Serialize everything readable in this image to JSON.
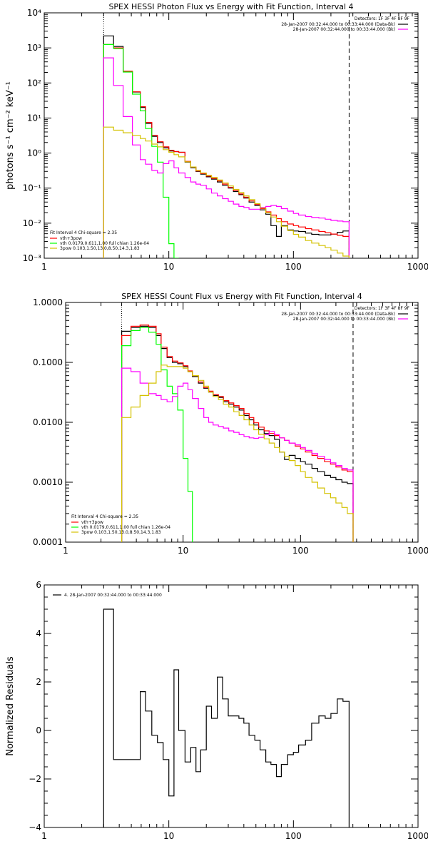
{
  "chart_data": [
    {
      "type": "line",
      "title": "SPEX HESSI Photon Flux vs Energy with Fit Function, Interval 4",
      "xlabel": "",
      "ylabel": "photons s⁻¹ cm⁻² keV⁻¹",
      "xscale": "log",
      "yscale": "log",
      "xlim": [
        1,
        1000
      ],
      "ylim": [
        0.001,
        10000
      ],
      "x_ticks": [
        1,
        10,
        100,
        1000
      ],
      "x_tick_labels": [
        "1",
        "10",
        "100",
        "1000"
      ],
      "y_ticks": [
        0.001,
        0.01,
        0.1,
        1,
        10,
        100,
        1000,
        10000
      ],
      "y_tick_labels": [
        "10⁻³",
        "10⁻²",
        "10⁻¹",
        "10⁰",
        "10¹",
        "10²",
        "10³",
        "10⁴"
      ],
      "vlines": [
        {
          "x": 3.0,
          "style": "dotted"
        },
        {
          "x": 280,
          "style": "dashed"
        }
      ],
      "legend_topright": {
        "header": "Detectors: 1F 3F 4F 8F 9F",
        "entries": [
          "28-Jan-2007 00:32:44.000 to 00:33:44.000 (Data-Bk)",
          "28-Jan-2007 00:32:44.000 to 00:33:44.000 (Bk)"
        ]
      },
      "legend_bottomleft": {
        "header": "Fit Interval  4   Chi-square = 2.35",
        "entries": [
          "vth+3pow",
          "vth 0.0179,0.611,1.00  full chian 1.26e-04",
          "3pow 0.103,1.50,13.0,8.50,14.3,1.83"
        ]
      },
      "series": [
        {
          "color": "#000000",
          "x": [
            3,
            3.6,
            4.3,
            5.1,
            5.9,
            6.5,
            7.3,
            8.1,
            9.0,
            10,
            11,
            12,
            13.5,
            15,
            16.5,
            18,
            20,
            22,
            24.5,
            27,
            30,
            33,
            36.5,
            40,
            44,
            49,
            54,
            60,
            66,
            73,
            80,
            90,
            100,
            110,
            125,
            140,
            160,
            180,
            200,
            225,
            250,
            280
          ],
          "y": [
            2200,
            1100,
            210,
            55,
            20,
            7,
            3.0,
            2.0,
            1.4,
            1.15,
            1.1,
            1.05,
            0.55,
            0.38,
            0.3,
            0.25,
            0.21,
            0.18,
            0.15,
            0.12,
            0.1,
            0.08,
            0.065,
            0.052,
            0.04,
            0.032,
            0.024,
            0.018,
            0.0085,
            0.0042,
            0.0085,
            0.0064,
            0.006,
            0.0058,
            0.0052,
            0.0048,
            0.0046,
            0.0046,
            0.0049,
            0.0055,
            0.006,
            0.0065
          ]
        },
        {
          "color": "#ff0000",
          "x": [
            3,
            3.6,
            4.3,
            5.1,
            5.9,
            6.5,
            7.3,
            8.1,
            9.0,
            10,
            11,
            12,
            13.5,
            15,
            16.5,
            18,
            20,
            22,
            24.5,
            27,
            30,
            33,
            36.5,
            40,
            44,
            49,
            54,
            60,
            66,
            73,
            80,
            90,
            100,
            110,
            125,
            140,
            160,
            180,
            200,
            225,
            250,
            280
          ],
          "y": [
            1250,
            1000,
            215,
            56,
            21,
            7.5,
            3.2,
            2.1,
            1.5,
            1.2,
            1.1,
            1.05,
            0.58,
            0.4,
            0.31,
            0.26,
            0.22,
            0.19,
            0.16,
            0.13,
            0.105,
            0.085,
            0.068,
            0.055,
            0.043,
            0.034,
            0.026,
            0.021,
            0.017,
            0.0135,
            0.011,
            0.0095,
            0.0085,
            0.0078,
            0.007,
            0.0064,
            0.0058,
            0.0053,
            0.0049,
            0.0045,
            0.0042,
            0.0039
          ]
        },
        {
          "color": "#00ff00",
          "x": [
            3,
            3.6,
            4.3,
            5.1,
            5.9,
            6.5,
            7.3,
            8.1,
            9.0,
            10,
            11,
            12
          ],
          "y": [
            1250,
            950,
            205,
            48,
            16,
            5.0,
            1.55,
            0.55,
            0.055,
            0.0026,
            0.001,
            0.001
          ]
        },
        {
          "color": "#ff00ff",
          "x": [
            3,
            3.6,
            4.3,
            5.1,
            5.9,
            6.5,
            7.3,
            8.1,
            9.0,
            10,
            11,
            12,
            13.5,
            15,
            16.5,
            18,
            20,
            22,
            24.5,
            27,
            30,
            33,
            36.5,
            40,
            44,
            49,
            54,
            60,
            66,
            73,
            80,
            90,
            100,
            110,
            125,
            140,
            160,
            180,
            200,
            225,
            250,
            280
          ],
          "y": [
            520,
            85,
            11,
            1.7,
            0.65,
            0.48,
            0.32,
            0.27,
            0.5,
            0.6,
            0.38,
            0.27,
            0.2,
            0.15,
            0.13,
            0.12,
            0.095,
            0.072,
            0.06,
            0.05,
            0.042,
            0.035,
            0.03,
            0.028,
            0.025,
            0.025,
            0.028,
            0.03,
            0.032,
            0.03,
            0.026,
            0.022,
            0.019,
            0.017,
            0.0155,
            0.0145,
            0.014,
            0.013,
            0.012,
            0.0115,
            0.011,
            0.0105
          ]
        },
        {
          "color": "#d4c200",
          "x": [
            3,
            3.6,
            4.3,
            5.1,
            5.9,
            6.5,
            7.3,
            8.1,
            9.0,
            10,
            11,
            12,
            13.5,
            15,
            16.5,
            18,
            20,
            22,
            24.5,
            27,
            30,
            33,
            36.5,
            40,
            44,
            49,
            54,
            60,
            66,
            73,
            80,
            90,
            100,
            110,
            125,
            140,
            160,
            180,
            200,
            225,
            250,
            280
          ],
          "y": [
            5.5,
            4.5,
            3.8,
            3.2,
            2.6,
            2.2,
            1.8,
            1.5,
            1.25,
            1.05,
            0.9,
            0.78,
            0.56,
            0.4,
            0.32,
            0.27,
            0.23,
            0.2,
            0.17,
            0.14,
            0.115,
            0.092,
            0.075,
            0.06,
            0.047,
            0.036,
            0.027,
            0.02,
            0.015,
            0.011,
            0.0082,
            0.0062,
            0.0048,
            0.004,
            0.0032,
            0.0027,
            0.0023,
            0.002,
            0.0017,
            0.0014,
            0.00115,
            0.0008
          ]
        }
      ]
    },
    {
      "type": "line",
      "title": "SPEX HESSI Count Flux vs Energy with Fit Function, Interval 4",
      "xlabel": "",
      "ylabel": "",
      "xscale": "log",
      "yscale": "log",
      "xlim": [
        1,
        1000
      ],
      "ylim": [
        0.0001,
        1.0
      ],
      "x_ticks": [
        1,
        10,
        100,
        1000
      ],
      "x_tick_labels": [
        "1",
        "10",
        "100",
        "1000"
      ],
      "y_ticks": [
        0.0001,
        0.001,
        0.01,
        0.1,
        1.0
      ],
      "y_tick_labels": [
        "0.0001",
        "0.0010",
        "0.0100",
        "0.1000",
        "1.0000"
      ],
      "vlines": [
        {
          "x": 3.0,
          "style": "dotted"
        },
        {
          "x": 280,
          "style": "dashed"
        }
      ],
      "legend_topright": {
        "header": "Detectors: 1F 3F 4F 8F 9F",
        "entries": [
          "28-Jan-2007 00:32:44.000 to 00:33:44.000 (Data-Bk)",
          "28-Jan-2007 00:32:44.000 to 00:33:44.000 (Bk)"
        ]
      },
      "legend_bottomleft": {
        "header": "Fit Interval  4   Chi-square = 2.35",
        "entries": [
          "vth+3pow",
          "vth 0.0179,0.611,1.00  full chian 1.26e-04",
          "3pow 0.103,1.50,13.0,8.50,14.3,1.83"
        ]
      },
      "series": [
        {
          "color": "#000000",
          "x": [
            3,
            3.6,
            4.3,
            5.1,
            5.9,
            6.5,
            7.3,
            8.1,
            9.0,
            10,
            11,
            12,
            13.5,
            15,
            16.5,
            18,
            20,
            22,
            24.5,
            27,
            30,
            33,
            36.5,
            40,
            44,
            49,
            54,
            60,
            66,
            73,
            80,
            90,
            100,
            110,
            125,
            140,
            160,
            180,
            200,
            225,
            250,
            280
          ],
          "y": [
            0.33,
            0.38,
            0.4,
            0.38,
            0.28,
            0.17,
            0.12,
            0.1,
            0.095,
            0.085,
            0.07,
            0.058,
            0.045,
            0.037,
            0.032,
            0.028,
            0.026,
            0.022,
            0.02,
            0.018,
            0.016,
            0.013,
            0.011,
            0.009,
            0.0075,
            0.0065,
            0.006,
            0.0052,
            0.0032,
            0.0024,
            0.0028,
            0.0025,
            0.0022,
            0.002,
            0.0017,
            0.0015,
            0.0013,
            0.0012,
            0.0011,
            0.001,
            0.00095,
            0.0009
          ]
        },
        {
          "color": "#ff0000",
          "x": [
            3,
            3.6,
            4.3,
            5.1,
            5.9,
            6.5,
            7.3,
            8.1,
            9.0,
            10,
            11,
            12,
            13.5,
            15,
            16.5,
            18,
            20,
            22,
            24.5,
            27,
            30,
            33,
            36.5,
            40,
            44,
            49,
            54,
            60,
            66,
            73,
            80,
            90,
            100,
            110,
            125,
            140,
            160,
            180,
            200,
            225,
            250,
            280
          ],
          "y": [
            0.28,
            0.4,
            0.42,
            0.4,
            0.3,
            0.18,
            0.125,
            0.105,
            0.098,
            0.088,
            0.072,
            0.06,
            0.047,
            0.038,
            0.033,
            0.029,
            0.027,
            0.023,
            0.021,
            0.019,
            0.017,
            0.014,
            0.012,
            0.0098,
            0.0083,
            0.0072,
            0.0065,
            0.006,
            0.0055,
            0.005,
            0.0045,
            0.004,
            0.0036,
            0.0032,
            0.0028,
            0.0025,
            0.0022,
            0.002,
            0.0018,
            0.0016,
            0.0015,
            0.0014
          ]
        },
        {
          "color": "#00ff00",
          "x": [
            3,
            3.6,
            4.3,
            5.1,
            5.9,
            6.5,
            7.3,
            8.1,
            9.0,
            10,
            11,
            12
          ],
          "y": [
            0.19,
            0.34,
            0.38,
            0.32,
            0.2,
            0.075,
            0.04,
            0.03,
            0.016,
            0.0025,
            0.0007,
            0.0001
          ]
        },
        {
          "color": "#ff00ff",
          "x": [
            3,
            3.6,
            4.3,
            5.1,
            5.9,
            6.5,
            7.3,
            8.1,
            9.0,
            10,
            11,
            12,
            13.5,
            15,
            16.5,
            18,
            20,
            22,
            24.5,
            27,
            30,
            33,
            36.5,
            40,
            44,
            49,
            54,
            60,
            66,
            73,
            80,
            90,
            100,
            110,
            125,
            140,
            160,
            180,
            200,
            225,
            250,
            280
          ],
          "y": [
            0.08,
            0.07,
            0.045,
            0.03,
            0.028,
            0.024,
            0.022,
            0.027,
            0.04,
            0.045,
            0.035,
            0.025,
            0.017,
            0.012,
            0.01,
            0.009,
            0.0085,
            0.008,
            0.0072,
            0.0068,
            0.0062,
            0.0058,
            0.0055,
            0.0054,
            0.0056,
            0.0062,
            0.007,
            0.0062,
            0.0055,
            0.005,
            0.0045,
            0.0042,
            0.0038,
            0.0034,
            0.003,
            0.0027,
            0.0024,
            0.0021,
            0.0019,
            0.0017,
            0.0016,
            0.0015
          ]
        },
        {
          "color": "#d4c200",
          "x": [
            3,
            3.6,
            4.3,
            5.1,
            5.9,
            6.5,
            7.3,
            8.1,
            9.0,
            10,
            11,
            12,
            13.5,
            15,
            16.5,
            18,
            20,
            22,
            24.5,
            27,
            30,
            33,
            36.5,
            40,
            44,
            49,
            54,
            60,
            66,
            73,
            80,
            90,
            100,
            110,
            125,
            140,
            160,
            180,
            200,
            225,
            250,
            280
          ],
          "y": [
            0.012,
            0.018,
            0.028,
            0.045,
            0.07,
            0.09,
            0.085,
            0.085,
            0.085,
            0.08,
            0.07,
            0.06,
            0.05,
            0.04,
            0.032,
            0.027,
            0.024,
            0.02,
            0.018,
            0.015,
            0.013,
            0.011,
            0.009,
            0.0075,
            0.0063,
            0.0053,
            0.0045,
            0.0038,
            0.0032,
            0.0027,
            0.0023,
            0.0019,
            0.0015,
            0.0012,
            0.001,
            0.0008,
            0.00065,
            0.00055,
            0.00045,
            0.00038,
            0.0003,
            0.00025
          ]
        }
      ]
    },
    {
      "type": "line",
      "title": "",
      "xlabel": "",
      "ylabel": "Normalized Residuals",
      "xscale": "log",
      "yscale": "linear",
      "xlim": [
        1,
        1000
      ],
      "ylim": [
        -4,
        6
      ],
      "x_ticks": [
        1,
        10,
        100,
        1000
      ],
      "x_tick_labels": [
        "1",
        "10",
        "100",
        "1000"
      ],
      "y_ticks": [
        -4,
        -2,
        0,
        2,
        4,
        6
      ],
      "y_tick_labels": [
        "−4",
        "−2",
        "0",
        "2",
        "4",
        "6"
      ],
      "legend_topleft": {
        "entries": [
          "4. 28-Jan-2007 00:32:44.000 to 00:33:44.000"
        ]
      },
      "series": [
        {
          "color": "#000000",
          "x": [
            3,
            3.6,
            4.3,
            5.1,
            5.9,
            6.5,
            7.3,
            8.1,
            9.0,
            10,
            11,
            12,
            13.5,
            15,
            16.5,
            18,
            20,
            22,
            24.5,
            27,
            30,
            33,
            36.5,
            40,
            44,
            49,
            54,
            60,
            66,
            73,
            80,
            90,
            100,
            110,
            125,
            140,
            160,
            180,
            200,
            225,
            250,
            280
          ],
          "y": [
            5.0,
            -1.2,
            -1.2,
            -1.2,
            1.6,
            0.8,
            -0.2,
            -0.5,
            -1.2,
            -2.7,
            2.5,
            0.0,
            -1.3,
            -0.7,
            -1.7,
            -0.8,
            1.0,
            0.5,
            2.2,
            1.3,
            0.6,
            0.6,
            0.5,
            0.3,
            -0.2,
            -0.4,
            -0.8,
            -1.3,
            -1.4,
            -1.9,
            -1.4,
            -1.0,
            -0.9,
            -0.6,
            -0.4,
            0.3,
            0.6,
            0.5,
            0.7,
            1.3,
            1.2,
            1.2
          ]
        }
      ]
    }
  ]
}
